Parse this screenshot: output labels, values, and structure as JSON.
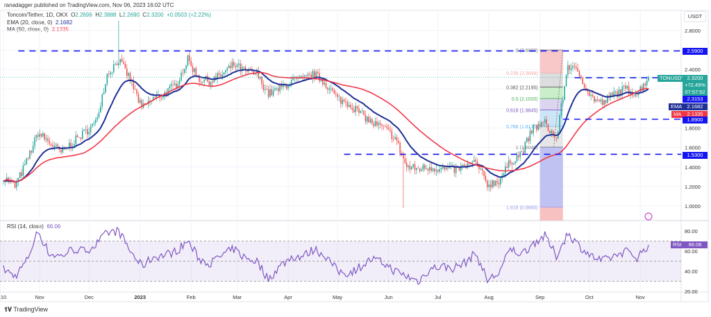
{
  "header": {
    "published": "ranadagger published on TradingView.com, Nov 06, 2023 16:02 UTC"
  },
  "legend": {
    "symbol": "Toncoin/Tether, 1D, OKX",
    "o_label": "O",
    "o": "2.2696",
    "h_label": "H",
    "h": "2.3888",
    "l_label": "L",
    "l": "2.2690",
    "c_label": "C",
    "c": "2.3200",
    "change": "+0.0503 (+2.22%)",
    "ema": "EMA (20, close, 0)",
    "ema_val": "2.1682",
    "ma": "MA (50, close, 0)",
    "ma_val": "2.1335",
    "rsi": "RSI (14, close)",
    "rsi_val": "66.06"
  },
  "axis": {
    "currency": "USDT",
    "price_ticks": [
      "2.8000",
      "2.4000",
      "1.8000",
      "1.6000",
      "1.4000",
      "1.2000",
      "1.0000"
    ],
    "rsi_ticks": [
      "80.00",
      "60.00",
      "40.00",
      "20.00"
    ]
  },
  "tags": {
    "res_2590": "2.5900",
    "symbol": "TONUSDT",
    "last": "2.3200",
    "pct": "+72.49%",
    "countdown": "07:57:52",
    "level_2315": "2.3153",
    "ema_label": "EMA",
    "ema": "2.1682",
    "ma_label": "MA",
    "ma": "2.1335",
    "sup_1890": "1.8900",
    "sup_1530": "1.5300",
    "rsi_label": "RSI",
    "rsi": "66.06"
  },
  "fib": [
    {
      "label": "0 (2.6000)",
      "price": 2.6,
      "color": "#787b86"
    },
    {
      "label": "0.236 (2.3649)",
      "price": 2.3649,
      "color": "#f7a7a7"
    },
    {
      "label": "0.382 (2.2195)",
      "price": 2.2195,
      "color": "#555"
    },
    {
      "label": "0.5 (2.1020)",
      "price": 2.102,
      "color": "#4caf50"
    },
    {
      "label": "0.618 (1.9845)",
      "price": 1.9845,
      "color": "#7e57c2"
    },
    {
      "label": "0.786 (1.8171)",
      "price": 1.8171,
      "color": "#64b5f6"
    },
    {
      "label": "1 (1.6040)",
      "price": 1.604,
      "color": "#787b86"
    },
    {
      "label": "1.618 (0.9885)",
      "price": 0.9885,
      "color": "#9598e8"
    }
  ],
  "colors": {
    "up": "#26a69a",
    "down": "#ef5350",
    "ema": "#1e2f97",
    "ma": "#f23645",
    "rsi": "#7e57c2",
    "level": "#1414f0"
  },
  "footer": {
    "brand": "TradingView"
  },
  "chart_data": {
    "type": "candlestick",
    "x_start": "2022-10-10",
    "x_step_days": 7,
    "close": [
      1.3,
      1.2,
      1.45,
      1.75,
      1.65,
      1.55,
      1.65,
      1.75,
      1.85,
      2.35,
      2.5,
      2.3,
      2.0,
      2.1,
      2.15,
      2.25,
      2.5,
      2.3,
      2.28,
      2.35,
      2.45,
      2.38,
      2.35,
      2.15,
      2.2,
      2.28,
      2.3,
      2.35,
      2.25,
      2.1,
      2.05,
      1.95,
      1.85,
      1.8,
      1.7,
      1.4,
      1.38,
      1.4,
      1.38,
      1.37,
      1.4,
      1.45,
      1.22,
      1.26,
      1.45,
      1.55,
      1.8,
      1.85,
      1.68,
      2.45,
      2.35,
      2.12,
      2.05,
      2.15,
      2.2,
      2.15,
      2.32
    ],
    "rsi": [
      42,
      35,
      50,
      80,
      57,
      55,
      62,
      60,
      66,
      78,
      80,
      60,
      45,
      54,
      56,
      60,
      70,
      52,
      48,
      56,
      62,
      53,
      50,
      32,
      45,
      54,
      55,
      62,
      55,
      40,
      38,
      45,
      52,
      48,
      40,
      35,
      30,
      42,
      45,
      43,
      48,
      58,
      31,
      38,
      62,
      57,
      68,
      75,
      55,
      78,
      65,
      55,
      50,
      55,
      60,
      54,
      66.06
    ],
    "extreme_wicks": [
      {
        "date": "2022-12-19",
        "high": 2.9
      },
      {
        "date": "2023-06-10",
        "low": 0.98
      }
    ],
    "levels": [
      {
        "price": 2.59,
        "from": "2022-10-19"
      },
      {
        "price": 2.3153,
        "from": "2023-09-22"
      },
      {
        "price": 1.89,
        "from": "2023-09-15"
      },
      {
        "price": 1.53,
        "from": "2023-05-05"
      }
    ],
    "fib_range": {
      "from": "2023-09-01",
      "to": "2023-09-15"
    },
    "x_ticks": [
      {
        "date": "2022-10-10",
        "label": "10"
      },
      {
        "date": "2022-11-01",
        "label": "Nov"
      },
      {
        "date": "2022-12-01",
        "label": "Dec"
      },
      {
        "date": "2023-01-01",
        "label": "2023"
      },
      {
        "date": "2023-02-01",
        "label": "Feb"
      },
      {
        "date": "2023-03-01",
        "label": "Mar"
      },
      {
        "date": "2023-04-01",
        "label": "Apr"
      },
      {
        "date": "2023-05-01",
        "label": "May"
      },
      {
        "date": "2023-06-01",
        "label": "Jun"
      },
      {
        "date": "2023-07-01",
        "label": "Jul"
      },
      {
        "date": "2023-08-01",
        "label": "Aug"
      },
      {
        "date": "2023-09-01",
        "label": "Sep"
      },
      {
        "date": "2023-10-01",
        "label": "Oct"
      },
      {
        "date": "2023-11-01",
        "label": "Nov"
      }
    ],
    "price_range": [
      0.9,
      2.95
    ],
    "rsi_range": [
      15,
      88
    ],
    "rsi_band": [
      30,
      70
    ],
    "rsi_mid": 50,
    "grid": true
  }
}
